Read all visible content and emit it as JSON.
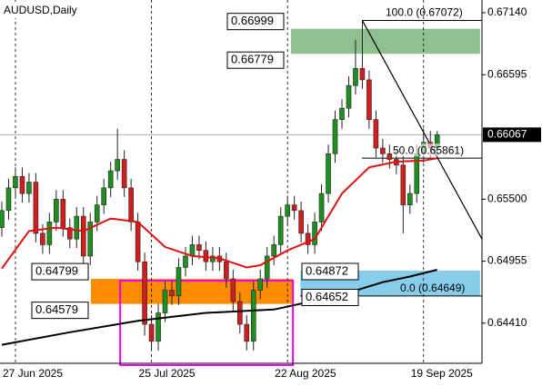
{
  "chart_data": {
    "type": "candlestick",
    "title": "AUDUSD,Daily",
    "categories": [
      null,
      null,
      "27 Jun 2025",
      null,
      null,
      null,
      null,
      null,
      null,
      null,
      null,
      null,
      null,
      null,
      null,
      null,
      null,
      null,
      null,
      null,
      null,
      null,
      "25 Jul 2025",
      null,
      null,
      null,
      null,
      null,
      null,
      null,
      null,
      null,
      null,
      null,
      null,
      null,
      null,
      null,
      null,
      null,
      null,
      null,
      "22 Aug 2025",
      null,
      null,
      null,
      null,
      null,
      null,
      null,
      null,
      null,
      null,
      null,
      null,
      null,
      null,
      null,
      null,
      null,
      null,
      null,
      "19 Sep 2025",
      null,
      null
    ],
    "open": [
      0.6525,
      0.654,
      0.656,
      0.657,
      0.6555,
      0.6565,
      0.652,
      0.651,
      0.653,
      0.655,
      0.6525,
      0.6515,
      0.6535,
      0.65,
      0.653,
      0.6545,
      0.656,
      0.6575,
      0.6585,
      0.656,
      0.653,
      0.6495,
      0.644,
      0.6425,
      0.645,
      0.647,
      0.6465,
      0.649,
      0.65,
      0.651,
      0.6505,
      0.6495,
      0.65,
      0.6495,
      0.648,
      0.646,
      0.644,
      0.6425,
      0.647,
      0.648,
      0.65,
      0.651,
      0.6535,
      0.6545,
      0.654,
      0.652,
      0.651,
      0.653,
      0.6555,
      0.659,
      0.662,
      0.663,
      0.665,
      0.6665,
      0.6655,
      0.662,
      0.6595,
      0.659,
      0.6585,
      0.658,
      0.6545,
      0.6555,
      0.659,
      0.66,
      0.6595
    ],
    "high": [
      0.6548,
      0.6568,
      0.6578,
      0.6578,
      0.6573,
      0.6573,
      0.6528,
      0.6538,
      0.6558,
      0.6558,
      0.6533,
      0.6543,
      0.6543,
      0.6538,
      0.6553,
      0.6568,
      0.6583,
      0.6612,
      0.6593,
      0.6568,
      0.6538,
      0.6503,
      0.6448,
      0.6458,
      0.6478,
      0.6478,
      0.6498,
      0.6508,
      0.6518,
      0.6518,
      0.6513,
      0.6508,
      0.6508,
      0.6503,
      0.6488,
      0.6468,
      0.6448,
      0.6478,
      0.6488,
      0.6508,
      0.6518,
      0.6543,
      0.6553,
      0.6553,
      0.6548,
      0.6528,
      0.6538,
      0.6563,
      0.6598,
      0.6628,
      0.6638,
      0.6658,
      0.669,
      0.67072,
      0.6663,
      0.6628,
      0.6603,
      0.6598,
      0.6593,
      0.6588,
      0.6563,
      0.6598,
      0.6612,
      0.661,
      0.661
    ],
    "low": [
      0.6517,
      0.6532,
      0.6552,
      0.6547,
      0.6547,
      0.6512,
      0.6502,
      0.6502,
      0.6522,
      0.6517,
      0.6507,
      0.6507,
      0.6492,
      0.6492,
      0.6522,
      0.6537,
      0.6552,
      0.6567,
      0.6552,
      0.6522,
      0.6487,
      0.643,
      0.6418,
      0.6417,
      0.6442,
      0.6457,
      0.6457,
      0.6482,
      0.6492,
      0.6497,
      0.6487,
      0.6487,
      0.6487,
      0.6472,
      0.6452,
      0.6432,
      0.6417,
      0.6417,
      0.6462,
      0.6472,
      0.6492,
      0.6502,
      0.6527,
      0.6532,
      0.6512,
      0.6502,
      0.6502,
      0.6522,
      0.6547,
      0.6582,
      0.6612,
      0.6622,
      0.6642,
      0.6647,
      0.6612,
      0.6587,
      0.6582,
      0.6577,
      0.6572,
      0.652,
      0.6537,
      0.6547,
      0.6582,
      0.6587,
      0.6587
    ],
    "close": [
      0.654,
      0.656,
      0.657,
      0.6555,
      0.6565,
      0.652,
      0.651,
      0.653,
      0.655,
      0.6525,
      0.6515,
      0.6535,
      0.65,
      0.653,
      0.6545,
      0.656,
      0.6575,
      0.6585,
      0.656,
      0.653,
      0.6495,
      0.644,
      0.6425,
      0.645,
      0.647,
      0.6465,
      0.649,
      0.65,
      0.651,
      0.6505,
      0.6495,
      0.65,
      0.6495,
      0.648,
      0.646,
      0.644,
      0.6425,
      0.647,
      0.648,
      0.65,
      0.651,
      0.6535,
      0.6545,
      0.654,
      0.652,
      0.651,
      0.653,
      0.6555,
      0.659,
      0.662,
      0.663,
      0.665,
      0.6665,
      0.6655,
      0.662,
      0.6595,
      0.659,
      0.6585,
      0.658,
      0.6545,
      0.6555,
      0.659,
      0.66,
      0.6595,
      0.66067
    ],
    "up_color": "#1f8f1f",
    "down_color": "#d01e1e",
    "series": [
      {
        "color": "#e01010",
        "x": [
          0,
          4,
          8,
          12,
          16,
          20,
          24,
          28,
          32,
          36,
          38,
          42,
          46,
          50,
          54,
          58,
          62,
          64
        ],
        "values": [
          0.6489,
          0.6522,
          0.6525,
          0.6522,
          0.6533,
          0.653,
          0.6508,
          0.65,
          0.6498,
          0.649,
          0.6492,
          0.6505,
          0.6515,
          0.6555,
          0.6578,
          0.6583,
          0.6584,
          0.6586
        ]
      },
      {
        "color": "#000000",
        "x": [
          0,
          10,
          20,
          30,
          40,
          50,
          56,
          60,
          64
        ],
        "values": [
          0.6422,
          0.6433,
          0.6443,
          0.645,
          0.6453,
          0.6466,
          0.6477,
          0.6482,
          0.6488
        ]
      }
    ],
    "ylim": [
      0.64057,
      0.67252
    ],
    "yticks": [
      {
        "value": 0.6714,
        "label": "0.67140"
      },
      0.66595,
      {
        "value": 0.655,
        "label": "0.65500"
      },
      0.64955,
      {
        "value": 0.6441,
        "label": "0.64410"
      }
    ],
    "current_price": 0.66067,
    "zones": [
      {
        "top": 0.66999,
        "bottom": 0.66779,
        "color": "#8fc08f"
      },
      {
        "top": 0.64799,
        "bottom": 0.64579,
        "color": "#ff8c00"
      },
      {
        "top": 0.64872,
        "bottom": 0.64652,
        "color": "#87cdea"
      }
    ],
    "highlight_box": {
      "top": 0.64784,
      "color": "#ee00ee"
    },
    "fibonacci": [
      {
        "value": 0.67072,
        "label": "100.0 (0.67072)"
      },
      {
        "value": 0.65861,
        "label": "50.0 (0.65861)"
      },
      {
        "value": 0.64649,
        "label": "0.0 (0.64649)"
      }
    ],
    "trend_line_end": 0.6515
  }
}
